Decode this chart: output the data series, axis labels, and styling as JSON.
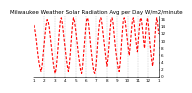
{
  "title": "Milwaukee Weather Solar Radiation Avg per Day W/m2/minute",
  "line_color": "#ff0000",
  "background_color": "#ffffff",
  "grid_color": "#888888",
  "ylim": [
    0,
    17
  ],
  "ytick_labels": [
    "0",
    "2",
    "4",
    "6",
    "8",
    "10",
    "12",
    "14",
    "16"
  ],
  "ytick_values": [
    0,
    2,
    4,
    6,
    8,
    10,
    12,
    14,
    16
  ],
  "y_values": [
    14.5,
    13.0,
    11.0,
    8.5,
    6.0,
    4.0,
    2.5,
    1.5,
    3.0,
    6.0,
    9.0,
    12.0,
    14.5,
    16.0,
    15.5,
    14.0,
    11.5,
    9.0,
    6.5,
    4.0,
    2.0,
    1.0,
    2.5,
    5.5,
    9.0,
    12.5,
    15.5,
    16.5,
    15.0,
    12.5,
    10.0,
    7.5,
    5.0,
    3.0,
    1.5,
    3.5,
    7.0,
    11.0,
    14.5,
    16.5,
    15.5,
    13.5,
    11.0,
    8.5,
    6.0,
    4.0,
    2.0,
    1.0,
    3.0,
    6.5,
    10.0,
    13.5,
    16.0,
    16.5,
    14.5,
    11.5,
    8.5,
    6.0,
    3.5,
    1.5,
    1.0,
    2.5,
    6.0,
    10.0,
    13.5,
    16.0,
    16.5,
    15.0,
    12.5,
    10.0,
    7.5,
    5.0,
    3.0,
    5.5,
    9.0,
    13.0,
    16.0,
    16.5,
    15.0,
    12.0,
    9.0,
    6.5,
    4.5,
    2.5,
    1.5,
    4.0,
    8.0,
    12.0,
    15.5,
    16.5,
    15.5,
    13.0,
    10.5,
    8.0,
    6.0,
    9.0,
    12.5,
    15.5,
    16.5,
    14.5,
    11.5,
    9.0,
    7.0,
    10.5,
    14.0,
    16.5,
    16.0,
    13.5,
    10.5,
    8.0,
    11.5,
    15.0,
    16.5,
    14.0,
    10.5,
    7.5,
    5.0,
    3.0,
    6.0,
    10.0,
    14.0,
    16.5,
    15.0,
    12.0
  ],
  "num_vgrid": 12,
  "xtick_labels": [
    "1",
    "2",
    "3",
    "4",
    "5",
    "6",
    "7",
    "8",
    "9",
    "10",
    "11",
    "12",
    "1"
  ],
  "title_fontsize": 4,
  "tick_labelsize": 3,
  "linewidth": 0.8,
  "dash_on": 2.5,
  "dash_off": 1.5
}
